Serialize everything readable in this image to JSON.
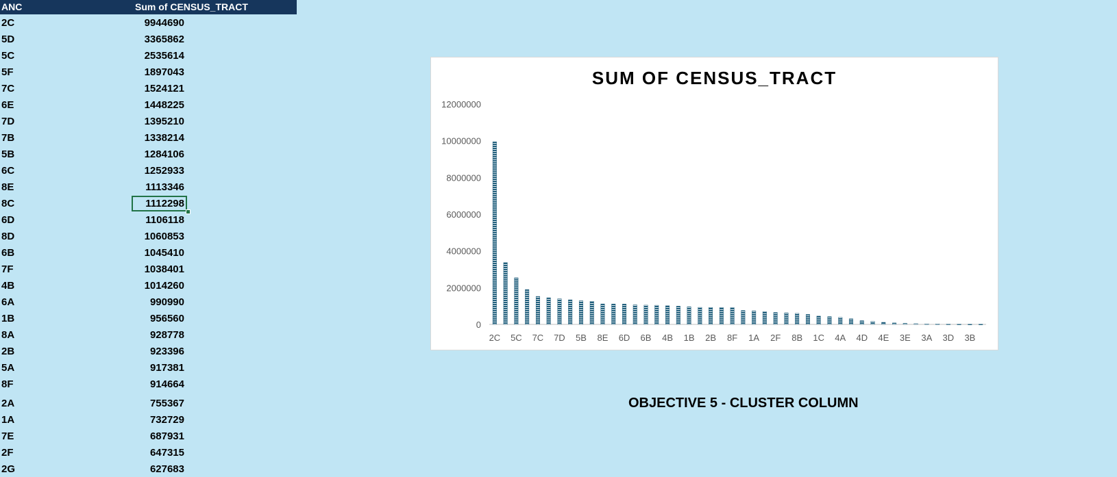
{
  "table": {
    "headers": [
      "ANC",
      "Sum of CENSUS_TRACT"
    ],
    "rows": [
      {
        "anc": "2C",
        "value": "9944690"
      },
      {
        "anc": "5D",
        "value": "3365862"
      },
      {
        "anc": "5C",
        "value": "2535614"
      },
      {
        "anc": "5F",
        "value": "1897043"
      },
      {
        "anc": "7C",
        "value": "1524121"
      },
      {
        "anc": "6E",
        "value": "1448225"
      },
      {
        "anc": "7D",
        "value": "1395210"
      },
      {
        "anc": "7B",
        "value": "1338214"
      },
      {
        "anc": "5B",
        "value": "1284106"
      },
      {
        "anc": "6C",
        "value": "1252933"
      },
      {
        "anc": "8E",
        "value": "1113346"
      },
      {
        "anc": "8C",
        "value": "1112298"
      },
      {
        "anc": "6D",
        "value": "1106118"
      },
      {
        "anc": "8D",
        "value": "1060853"
      },
      {
        "anc": "6B",
        "value": "1045410"
      },
      {
        "anc": "7F",
        "value": "1038401"
      },
      {
        "anc": "4B",
        "value": "1014260"
      },
      {
        "anc": "6A",
        "value": "990990"
      },
      {
        "anc": "1B",
        "value": "956560"
      },
      {
        "anc": "8A",
        "value": "928778"
      },
      {
        "anc": "2B",
        "value": "923396"
      },
      {
        "anc": "5A",
        "value": "917381"
      },
      {
        "anc": "8F",
        "value": "914664"
      },
      {
        "anc": "2A",
        "value": "755367"
      },
      {
        "anc": "1A",
        "value": "732729"
      },
      {
        "anc": "7E",
        "value": "687931"
      },
      {
        "anc": "2F",
        "value": "647315"
      },
      {
        "anc": "2G",
        "value": "627683"
      }
    ],
    "selected_index": 11
  },
  "chart_data": {
    "type": "bar",
    "title": "SUM OF CENSUS_TRACT",
    "xlabel": "",
    "ylabel": "",
    "ylim": [
      0,
      12000000
    ],
    "yticks": [
      "0",
      "2000000",
      "4000000",
      "6000000",
      "8000000",
      "10000000",
      "12000000"
    ],
    "xtick_labels": [
      "2C",
      "5C",
      "7C",
      "7D",
      "5B",
      "8E",
      "6D",
      "6B",
      "4B",
      "1B",
      "2B",
      "8F",
      "1A",
      "2F",
      "8B",
      "1C",
      "4A",
      "4D",
      "4E",
      "3E",
      "3A",
      "3D",
      "3B"
    ],
    "categories": [
      "2C",
      "5D",
      "5C",
      "5F",
      "7C",
      "6E",
      "7D",
      "7B",
      "5B",
      "6C",
      "8E",
      "8C",
      "6D",
      "8D",
      "6B",
      "7F",
      "4B",
      "6A",
      "1B",
      "8A",
      "2B",
      "5A",
      "8F",
      "2A",
      "1A",
      "7E",
      "2F",
      "2G",
      "8B",
      "",
      "1C",
      "",
      "4A",
      "",
      "4D",
      "",
      "4E",
      "",
      "3E",
      "",
      "3A",
      "",
      "3D",
      "",
      "3B",
      ""
    ],
    "values": [
      9944690,
      3365862,
      2535614,
      1897043,
      1524121,
      1448225,
      1395210,
      1338214,
      1284106,
      1252933,
      1113346,
      1112298,
      1106118,
      1060853,
      1045410,
      1038401,
      1014260,
      990990,
      956560,
      928778,
      923396,
      917381,
      914664,
      755367,
      732729,
      687931,
      647315,
      627683,
      600000,
      540000,
      450000,
      420000,
      380000,
      300000,
      200000,
      160000,
      110000,
      80000,
      60000,
      40000,
      30000,
      25000,
      20000,
      15000,
      12000,
      10000
    ],
    "bar_color": "#215f7c",
    "grid": false,
    "legend": "none"
  },
  "caption": "OBJECTIVE 5 - CLUSTER COLUMN"
}
